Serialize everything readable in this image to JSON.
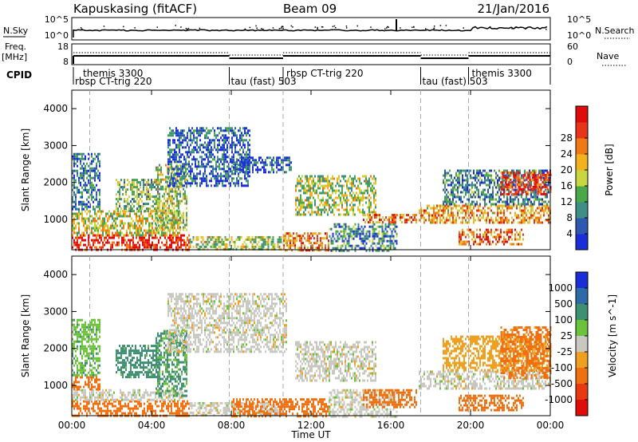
{
  "header": {
    "station": "Kapuskasing (fitACF)",
    "beam": "Beam 09",
    "date": "21/Jan/2016"
  },
  "top_panels": {
    "nsky_label": "N.Sky",
    "nsky_ticks": [
      "10^5",
      "10^0"
    ],
    "nsearch_label": "N.Search",
    "nsearch_ticks": [
      "10^5",
      "10^0"
    ],
    "freq_label_line1": "Freq.",
    "freq_label_line2": "[MHz]",
    "freq_ticks": [
      "18",
      "8"
    ],
    "nave_label": "Nave",
    "nave_ticks": [
      "60",
      "0"
    ],
    "cpid_label": "CPID"
  },
  "cpid_segments": [
    {
      "upper": "themis 3300",
      "lower": "rbsp CT-trig 220",
      "start_hour": 0.0,
      "end_hour": 7.9
    },
    {
      "upper": "",
      "lower": "tau (fast) 503",
      "start_hour": 7.9,
      "end_hour": 10.6
    },
    {
      "upper": "rbsp CT-trig 220",
      "lower": "",
      "start_hour": 10.6,
      "end_hour": 17.5
    },
    {
      "upper": "",
      "lower": "tau (fast) 503",
      "start_hour": 17.5,
      "end_hour": 19.9
    },
    {
      "upper": "themis 3300",
      "lower": "",
      "start_hour": 19.9,
      "end_hour": 24.0
    }
  ],
  "colors": {
    "power_scale": [
      "#1a2ed8",
      "#2f59b0",
      "#3f8f86",
      "#4aa84a",
      "#c8d640",
      "#f2b21e",
      "#ef7a14",
      "#e8351a",
      "#e00c0c"
    ],
    "velocity_scale": [
      "#1a2ed8",
      "#2f6aa8",
      "#3f8f73",
      "#6cc23a",
      "#c8c8c0",
      "#f0a020",
      "#f07010",
      "#e83a10",
      "#e00c0c"
    ]
  },
  "chart_data": [
    {
      "type": "heatmap",
      "title": "",
      "xlabel": "",
      "ylabel": "Slant Range [km]",
      "x_ticks": [
        "00:00",
        "04:00",
        "08:00",
        "12:00",
        "16:00",
        "20:00",
        "00:00"
      ],
      "y_ticks": [
        "1000",
        "2000",
        "3000",
        "4000"
      ],
      "xlim_hours": [
        0,
        24
      ],
      "ylim_km": [
        180,
        4500
      ],
      "colorbar": {
        "label": "Power [dB]",
        "ticks": [
          "4",
          "8",
          "12",
          "16",
          "20",
          "24",
          "28"
        ],
        "range": [
          0,
          30
        ]
      },
      "dashed_markers_hours": [
        0.9,
        7.9,
        10.6,
        17.5,
        19.9
      ],
      "regions": [
        {
          "t0": 0.0,
          "t1": 5.9,
          "r0": 180,
          "r1": 600,
          "value": 27
        },
        {
          "t0": 0.0,
          "t1": 5.4,
          "r0": 600,
          "r1": 1250,
          "value": 16
        },
        {
          "t0": 0.0,
          "t1": 1.4,
          "r0": 1250,
          "r1": 2800,
          "value": 6
        },
        {
          "t0": 2.2,
          "t1": 4.4,
          "r0": 1250,
          "r1": 2100,
          "value": 12
        },
        {
          "t0": 4.2,
          "t1": 5.8,
          "r0": 700,
          "r1": 2500,
          "value": 14
        },
        {
          "t0": 4.8,
          "t1": 8.9,
          "r0": 1900,
          "r1": 3500,
          "value": 5
        },
        {
          "t0": 5.9,
          "t1": 10.5,
          "r0": 180,
          "r1": 550,
          "value": 14
        },
        {
          "t0": 8.0,
          "t1": 11.0,
          "r0": 2300,
          "r1": 2700,
          "value": 5
        },
        {
          "t0": 10.6,
          "t1": 12.9,
          "r0": 180,
          "r1": 650,
          "value": 22
        },
        {
          "t0": 12.9,
          "t1": 16.3,
          "r0": 180,
          "r1": 900,
          "value": 8
        },
        {
          "t0": 11.2,
          "t1": 15.2,
          "r0": 1100,
          "r1": 2200,
          "value": 14
        },
        {
          "t0": 14.6,
          "t1": 17.3,
          "r0": 900,
          "r1": 1150,
          "value": 22
        },
        {
          "t0": 17.4,
          "t1": 24.0,
          "r0": 900,
          "r1": 1400,
          "value": 20
        },
        {
          "t0": 18.6,
          "t1": 24.0,
          "r0": 1400,
          "r1": 2350,
          "value": 8
        },
        {
          "t0": 19.4,
          "t1": 22.6,
          "r0": 350,
          "r1": 750,
          "value": 23
        },
        {
          "t0": 21.5,
          "t1": 24.0,
          "r0": 1700,
          "r1": 2300,
          "value": 26
        }
      ]
    },
    {
      "type": "heatmap",
      "title": "",
      "xlabel": "Time UT",
      "ylabel": "Slant Range [km]",
      "x_ticks": [
        "00:00",
        "04:00",
        "08:00",
        "12:00",
        "16:00",
        "20:00",
        "00:00"
      ],
      "y_ticks": [
        "1000",
        "2000",
        "3000",
        "4000"
      ],
      "xlim_hours": [
        0,
        24
      ],
      "ylim_km": [
        180,
        4500
      ],
      "colorbar": {
        "label": "Velocity [m s^-1]",
        "ticks": [
          "1000",
          "500",
          "100",
          "25",
          "-25",
          "-100",
          "-500",
          "-1000"
        ],
        "range": [
          -1000,
          1000
        ]
      },
      "dashed_markers_hours": [
        0.9,
        7.9,
        10.6,
        17.5,
        19.9
      ],
      "regions": [
        {
          "t0": 0.0,
          "t1": 5.9,
          "r0": 180,
          "r1": 600,
          "value": -200
        },
        {
          "t0": 0.0,
          "t1": 5.6,
          "r0": 600,
          "r1": 900,
          "value": 0
        },
        {
          "t0": 0.0,
          "t1": 1.4,
          "r0": 900,
          "r1": 1250,
          "value": -200
        },
        {
          "t0": 0.0,
          "t1": 1.4,
          "r0": 1250,
          "r1": 2800,
          "value": 80
        },
        {
          "t0": 2.2,
          "t1": 4.4,
          "r0": 1250,
          "r1": 2100,
          "value": 150
        },
        {
          "t0": 4.2,
          "t1": 5.8,
          "r0": 700,
          "r1": 2500,
          "value": 120
        },
        {
          "t0": 4.8,
          "t1": 10.8,
          "r0": 1900,
          "r1": 3500,
          "value": 0
        },
        {
          "t0": 5.9,
          "t1": 10.5,
          "r0": 180,
          "r1": 550,
          "value": 0
        },
        {
          "t0": 8.0,
          "t1": 12.9,
          "r0": 180,
          "r1": 650,
          "value": -250
        },
        {
          "t0": 12.9,
          "t1": 16.3,
          "r0": 180,
          "r1": 900,
          "value": 0
        },
        {
          "t0": 11.2,
          "t1": 15.2,
          "r0": 1100,
          "r1": 2200,
          "value": 0
        },
        {
          "t0": 14.6,
          "t1": 17.3,
          "r0": 400,
          "r1": 900,
          "value": -300
        },
        {
          "t0": 17.4,
          "t1": 24.0,
          "r0": 900,
          "r1": 1400,
          "value": 0
        },
        {
          "t0": 18.6,
          "t1": 24.0,
          "r0": 1400,
          "r1": 2350,
          "value": -60
        },
        {
          "t0": 19.4,
          "t1": 22.6,
          "r0": 350,
          "r1": 750,
          "value": -300
        },
        {
          "t0": 21.5,
          "t1": 24.0,
          "r0": 1200,
          "r1": 2600,
          "value": -150
        }
      ]
    }
  ]
}
